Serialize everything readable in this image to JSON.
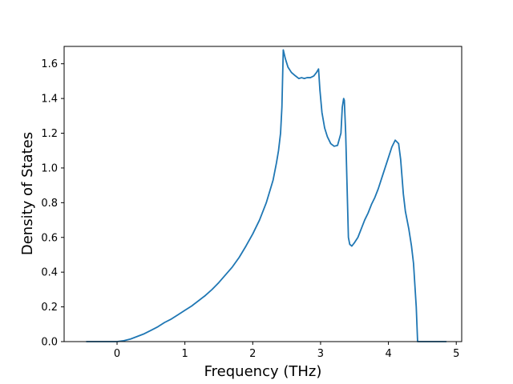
{
  "chart_data": {
    "type": "line",
    "title": "",
    "xlabel": "Frequency (THz)",
    "ylabel": "Density of States",
    "xlim": [
      -0.78,
      5.08
    ],
    "ylim": [
      0.0,
      1.7
    ],
    "xticks": [
      0,
      1,
      2,
      3,
      4,
      5
    ],
    "xtick_labels": [
      "0",
      "1",
      "2",
      "3",
      "4",
      "5"
    ],
    "yticks": [
      0.0,
      0.2,
      0.4,
      0.6,
      0.8,
      1.0,
      1.2,
      1.4,
      1.6
    ],
    "ytick_labels": [
      "0.0",
      "0.2",
      "0.4",
      "0.6",
      "0.8",
      "1.0",
      "1.2",
      "1.4",
      "1.6"
    ],
    "grid": false,
    "legend": "none",
    "series": [
      {
        "color": "#1f77b4",
        "x": [
          -0.45,
          0.0,
          0.1,
          0.2,
          0.3,
          0.4,
          0.5,
          0.6,
          0.7,
          0.8,
          0.9,
          1.0,
          1.1,
          1.2,
          1.3,
          1.4,
          1.5,
          1.6,
          1.7,
          1.8,
          1.9,
          2.0,
          2.1,
          2.2,
          2.3,
          2.35,
          2.38,
          2.41,
          2.43,
          2.45,
          2.48,
          2.52,
          2.57,
          2.63,
          2.68,
          2.72,
          2.76,
          2.8,
          2.85,
          2.9,
          2.94,
          2.97,
          2.99,
          3.02,
          3.06,
          3.1,
          3.15,
          3.2,
          3.25,
          3.3,
          3.32,
          3.34,
          3.35,
          3.37,
          3.39,
          3.41,
          3.43,
          3.46,
          3.5,
          3.55,
          3.6,
          3.65,
          3.7,
          3.75,
          3.8,
          3.85,
          3.9,
          3.95,
          4.0,
          4.05,
          4.1,
          4.15,
          4.18,
          4.2,
          4.22,
          4.25,
          4.3,
          4.34,
          4.37,
          4.41,
          4.43,
          4.5,
          4.85
        ],
        "y": [
          0.0,
          0.0,
          0.005,
          0.015,
          0.03,
          0.045,
          0.065,
          0.085,
          0.11,
          0.13,
          0.155,
          0.18,
          0.205,
          0.235,
          0.265,
          0.3,
          0.34,
          0.385,
          0.43,
          0.485,
          0.55,
          0.62,
          0.7,
          0.8,
          0.93,
          1.03,
          1.1,
          1.2,
          1.35,
          1.68,
          1.63,
          1.58,
          1.55,
          1.53,
          1.515,
          1.52,
          1.515,
          1.52,
          1.52,
          1.53,
          1.55,
          1.57,
          1.45,
          1.32,
          1.23,
          1.18,
          1.14,
          1.125,
          1.13,
          1.2,
          1.35,
          1.4,
          1.39,
          1.2,
          0.9,
          0.6,
          0.56,
          0.55,
          0.57,
          0.6,
          0.65,
          0.7,
          0.74,
          0.79,
          0.83,
          0.88,
          0.94,
          1.0,
          1.06,
          1.12,
          1.16,
          1.14,
          1.05,
          0.95,
          0.85,
          0.75,
          0.65,
          0.55,
          0.45,
          0.2,
          0.0,
          0.0,
          0.0
        ]
      }
    ]
  }
}
